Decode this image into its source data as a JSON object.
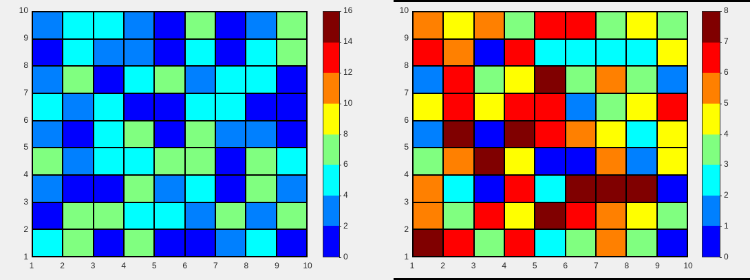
{
  "chart_data": [
    {
      "type": "heatmap",
      "title": "",
      "xlabel": "",
      "ylabel": "",
      "xlim": [
        1,
        10
      ],
      "ylim": [
        1,
        10
      ],
      "x_ticks": [
        "1",
        "2",
        "3",
        "4",
        "5",
        "6",
        "7",
        "8",
        "9",
        "10"
      ],
      "y_ticks": [
        "1",
        "2",
        "3",
        "4",
        "5",
        "6",
        "7",
        "8",
        "9",
        "10"
      ],
      "colormap": "jet (8 levels)",
      "clim": [
        0,
        16
      ],
      "colorbar_ticks": [
        "0",
        "2",
        "4",
        "6",
        "8",
        "10",
        "12",
        "14",
        "16"
      ],
      "colorbar_colors": [
        "#0000ff",
        "#0080ff",
        "#00ffff",
        "#80ff80",
        "#ffff00",
        "#ff8000",
        "#ff0000",
        "#800000"
      ],
      "rows_top_to_bottom_bin_index": [
        [
          1,
          2,
          2,
          1,
          0,
          3,
          0,
          1,
          3
        ],
        [
          0,
          2,
          1,
          1,
          0,
          2,
          0,
          2,
          3
        ],
        [
          1,
          3,
          0,
          2,
          3,
          1,
          2,
          2,
          0
        ],
        [
          2,
          1,
          2,
          0,
          0,
          2,
          2,
          0,
          0
        ],
        [
          1,
          0,
          2,
          3,
          0,
          3,
          1,
          1,
          0
        ],
        [
          3,
          1,
          2,
          2,
          3,
          3,
          0,
          3,
          2
        ],
        [
          1,
          0,
          0,
          3,
          1,
          2,
          0,
          3,
          1
        ],
        [
          0,
          3,
          3,
          2,
          2,
          1,
          3,
          1,
          3
        ],
        [
          2,
          3,
          0,
          3,
          0,
          0,
          1,
          2,
          0
        ]
      ],
      "approx_values_note": "bin index k covers value range [2k, 2k+2)"
    },
    {
      "type": "heatmap",
      "title": "",
      "xlabel": "",
      "ylabel": "",
      "xlim": [
        1,
        10
      ],
      "ylim": [
        1,
        10
      ],
      "x_ticks": [
        "1",
        "2",
        "3",
        "4",
        "5",
        "6",
        "7",
        "8",
        "9",
        "10"
      ],
      "y_ticks": [
        "1",
        "2",
        "3",
        "4",
        "5",
        "6",
        "7",
        "8",
        "9",
        "10"
      ],
      "colormap": "jet (8 levels)",
      "clim": [
        0,
        8
      ],
      "colorbar_ticks": [
        "0",
        "1",
        "2",
        "3",
        "4",
        "5",
        "6",
        "7",
        "8"
      ],
      "colorbar_colors": [
        "#0000ff",
        "#0080ff",
        "#00ffff",
        "#80ff80",
        "#ffff00",
        "#ff8000",
        "#ff0000",
        "#800000"
      ],
      "rows_top_to_bottom_bin_index": [
        [
          5,
          4,
          5,
          3,
          6,
          6,
          3,
          4,
          3
        ],
        [
          6,
          5,
          0,
          6,
          2,
          2,
          2,
          2,
          4
        ],
        [
          1,
          6,
          3,
          4,
          7,
          3,
          5,
          3,
          1
        ],
        [
          4,
          6,
          4,
          6,
          6,
          1,
          3,
          4,
          6
        ],
        [
          1,
          7,
          0,
          7,
          6,
          5,
          4,
          2,
          4
        ],
        [
          3,
          5,
          7,
          4,
          0,
          0,
          5,
          1,
          4
        ],
        [
          5,
          2,
          0,
          6,
          2,
          7,
          7,
          7,
          0
        ],
        [
          5,
          3,
          6,
          4,
          7,
          6,
          5,
          4,
          3
        ],
        [
          7,
          6,
          3,
          6,
          2,
          3,
          5,
          3,
          0
        ]
      ],
      "approx_values_note": "bin index k covers value range [k, k+1)"
    }
  ]
}
